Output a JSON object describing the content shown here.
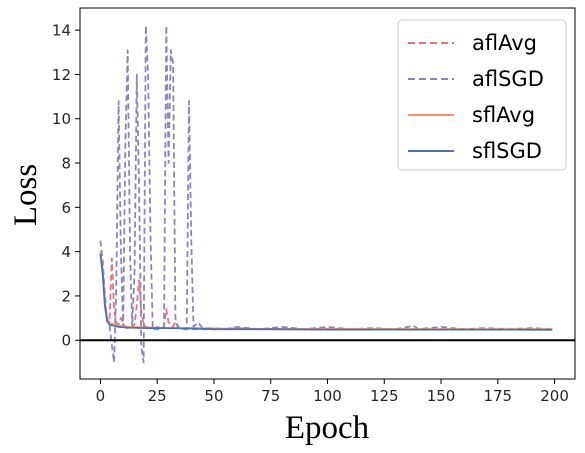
{
  "chart_data": {
    "type": "line",
    "xlabel": "Epoch",
    "ylabel": "Loss",
    "xlim": [
      -9,
      209
    ],
    "ylim": [
      -1.75,
      15.0
    ],
    "xticks": [
      "0",
      "25",
      "50",
      "75",
      "100",
      "125",
      "150",
      "175",
      "200"
    ],
    "yticks": [
      "0",
      "2",
      "4",
      "6",
      "8",
      "10",
      "12",
      "14"
    ],
    "hline": 0,
    "grid": false,
    "legend_position": "top-right",
    "series": [
      {
        "name": "aflAvg",
        "style": "dashed",
        "color": "#e8717a",
        "points": [
          [
            0,
            4.0
          ],
          [
            1,
            3.0
          ],
          [
            2,
            1.6
          ],
          [
            3,
            0.9
          ],
          [
            4,
            0.8
          ],
          [
            5,
            3.7
          ],
          [
            6,
            1.4
          ],
          [
            7,
            0.8
          ],
          [
            8,
            0.7
          ],
          [
            9,
            1.0
          ],
          [
            10,
            0.8
          ],
          [
            11,
            0.6
          ],
          [
            12,
            0.55
          ],
          [
            13,
            0.5
          ],
          [
            14,
            0.6
          ],
          [
            15,
            0.7
          ],
          [
            16,
            1.6
          ],
          [
            17,
            2.7
          ],
          [
            18,
            1.3
          ],
          [
            19,
            0.7
          ],
          [
            20,
            0.6
          ],
          [
            22,
            0.55
          ],
          [
            24,
            0.5
          ],
          [
            26,
            0.5
          ],
          [
            28,
            0.6
          ],
          [
            29,
            1.4
          ],
          [
            30,
            0.8
          ],
          [
            32,
            0.6
          ],
          [
            33,
            0.85
          ],
          [
            35,
            0.5
          ],
          [
            38,
            0.5
          ],
          [
            45,
            0.5
          ],
          [
            55,
            0.5
          ],
          [
            60,
            0.55
          ],
          [
            70,
            0.5
          ],
          [
            80,
            0.5
          ],
          [
            90,
            0.5
          ],
          [
            100,
            0.52
          ],
          [
            120,
            0.5
          ],
          [
            140,
            0.5
          ],
          [
            160,
            0.5
          ],
          [
            180,
            0.48
          ],
          [
            190,
            0.5
          ],
          [
            199,
            0.47
          ]
        ]
      },
      {
        "name": "aflSGD",
        "style": "dashed",
        "color": "#8a85c0",
        "points": [
          [
            0,
            4.5
          ],
          [
            1,
            3.6
          ],
          [
            2,
            2.0
          ],
          [
            3,
            0.9
          ],
          [
            4,
            0.7
          ],
          [
            5,
            -0.2
          ],
          [
            6,
            -1.0
          ],
          [
            7,
            2.5
          ],
          [
            8,
            10.8
          ],
          [
            9,
            4.0
          ],
          [
            10,
            0.6
          ],
          [
            11,
            9.0
          ],
          [
            12,
            13.1
          ],
          [
            13,
            4.0
          ],
          [
            14,
            0.6
          ],
          [
            15,
            3.0
          ],
          [
            16,
            12.0
          ],
          [
            17,
            7.0
          ],
          [
            18,
            -0.3
          ],
          [
            19,
            -1.0
          ],
          [
            20,
            14.2
          ],
          [
            21,
            12.0
          ],
          [
            22,
            5.0
          ],
          [
            23,
            0.5
          ],
          [
            25,
            0.6
          ],
          [
            27,
            0.55
          ],
          [
            28,
            0.6
          ],
          [
            29,
            14.2
          ],
          [
            30,
            8.0
          ],
          [
            31,
            13.1
          ],
          [
            32,
            12.5
          ],
          [
            33,
            1.0
          ],
          [
            34,
            0.6
          ],
          [
            36,
            0.5
          ],
          [
            38,
            0.5
          ],
          [
            39,
            10.8
          ],
          [
            40,
            4.5
          ],
          [
            41,
            0.6
          ],
          [
            43,
            0.8
          ],
          [
            45,
            0.55
          ],
          [
            50,
            0.55
          ],
          [
            55,
            0.5
          ],
          [
            60,
            0.6
          ],
          [
            70,
            0.5
          ],
          [
            80,
            0.6
          ],
          [
            90,
            0.5
          ],
          [
            100,
            0.6
          ],
          [
            110,
            0.5
          ],
          [
            120,
            0.55
          ],
          [
            130,
            0.5
          ],
          [
            138,
            0.65
          ],
          [
            140,
            0.5
          ],
          [
            150,
            0.6
          ],
          [
            160,
            0.5
          ],
          [
            170,
            0.55
          ],
          [
            180,
            0.5
          ],
          [
            190,
            0.55
          ],
          [
            199,
            0.5
          ]
        ]
      },
      {
        "name": "sflAvg",
        "style": "solid",
        "color": "#f5956b",
        "points": [
          [
            0,
            4.0
          ],
          [
            1,
            3.2
          ],
          [
            2,
            1.6
          ],
          [
            3,
            1.0
          ],
          [
            4,
            0.8
          ],
          [
            6,
            0.7
          ],
          [
            8,
            0.65
          ],
          [
            12,
            0.6
          ],
          [
            20,
            0.58
          ],
          [
            30,
            0.55
          ],
          [
            40,
            0.55
          ],
          [
            50,
            0.53
          ],
          [
            75,
            0.5
          ],
          [
            100,
            0.5
          ],
          [
            125,
            0.5
          ],
          [
            150,
            0.5
          ],
          [
            175,
            0.5
          ],
          [
            199,
            0.5
          ]
        ]
      },
      {
        "name": "sflSGD",
        "style": "solid",
        "color": "#4a72b0",
        "points": [
          [
            0,
            3.9
          ],
          [
            1,
            3.0
          ],
          [
            2,
            1.5
          ],
          [
            3,
            0.85
          ],
          [
            4,
            0.7
          ],
          [
            6,
            0.65
          ],
          [
            8,
            0.6
          ],
          [
            12,
            0.57
          ],
          [
            20,
            0.55
          ],
          [
            30,
            0.55
          ],
          [
            40,
            0.53
          ],
          [
            50,
            0.5
          ],
          [
            75,
            0.5
          ],
          [
            100,
            0.48
          ],
          [
            125,
            0.48
          ],
          [
            150,
            0.48
          ],
          [
            175,
            0.48
          ],
          [
            199,
            0.47
          ]
        ]
      }
    ]
  },
  "colors": {
    "axis": "#000000",
    "zero_line": "#000000"
  }
}
